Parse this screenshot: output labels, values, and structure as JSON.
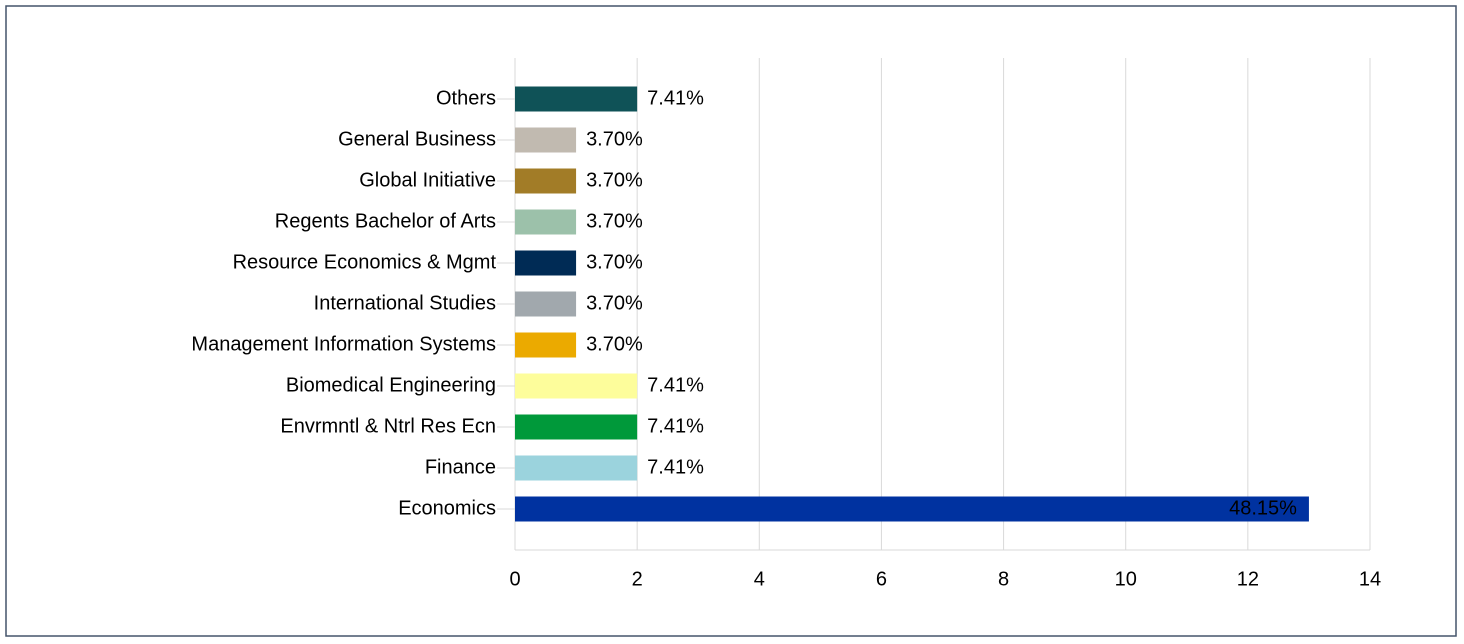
{
  "chart_data": {
    "type": "bar",
    "orientation": "horizontal",
    "categories": [
      "Others",
      "General Business",
      "Global Initiative",
      "Regents Bachelor of Arts",
      "Resource Economics & Mgmt",
      "International Studies",
      "Management Information Systems",
      "Biomedical Engineering",
      "Envrmntl & Ntrl Res Ecn",
      "Finance",
      "Economics"
    ],
    "values": [
      2,
      1,
      1,
      1,
      1,
      1,
      1,
      2,
      2,
      2,
      13
    ],
    "value_labels": [
      "7.41%",
      "3.70%",
      "3.70%",
      "3.70%",
      "3.70%",
      "3.70%",
      "3.70%",
      "7.41%",
      "7.41%",
      "7.41%",
      "48.15%"
    ],
    "colors": [
      "#0f5257",
      "#c1bab0",
      "#a27c27",
      "#9cc1aa",
      "#002b55",
      "#a1a8ad",
      "#ebaa00",
      "#fdfd9b",
      "#00993a",
      "#9bd3dd",
      "#0032a0"
    ],
    "xlim": [
      0,
      14
    ],
    "xticks": [
      0,
      2,
      4,
      6,
      8,
      10,
      12,
      14
    ],
    "grid": true
  }
}
